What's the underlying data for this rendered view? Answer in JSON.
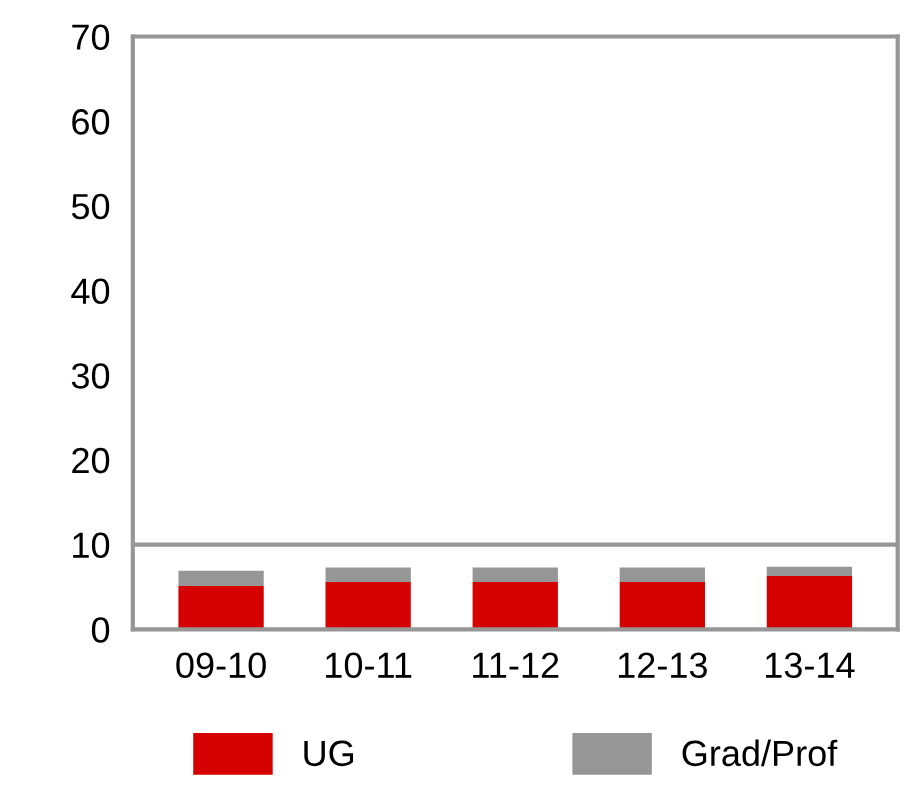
{
  "chart_data": {
    "type": "bar",
    "stacked": true,
    "categories": [
      "09-10",
      "10-11",
      "11-12",
      "12-13",
      "13-14"
    ],
    "series": [
      {
        "name": "UG",
        "color": "#d50000",
        "values": [
          5.1,
          5.6,
          5.6,
          5.6,
          6.3
        ]
      },
      {
        "name": "Grad/Prof",
        "color": "#969696",
        "values": [
          1.8,
          1.7,
          1.7,
          1.7,
          1.1
        ]
      }
    ],
    "ylim": [
      0,
      70
    ],
    "yticks": [
      0,
      10,
      20,
      30,
      40,
      50,
      60,
      70
    ],
    "ref_lines": [
      {
        "axis": "y",
        "value": 10,
        "color": "#969696"
      }
    ],
    "grid": false,
    "legend": "bottom"
  }
}
